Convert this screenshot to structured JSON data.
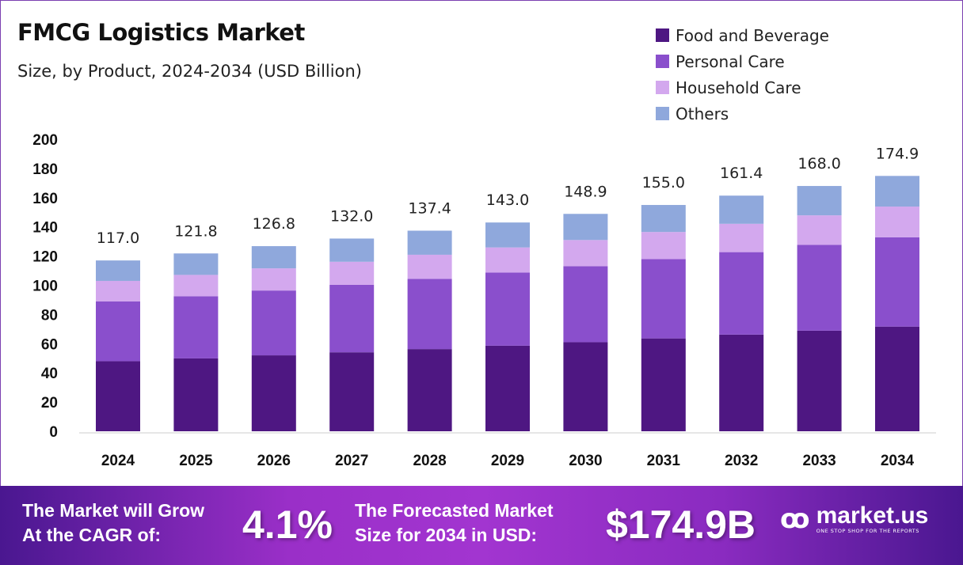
{
  "chart_data": {
    "type": "bar",
    "stacked": true,
    "title": "FMCG Logistics Market",
    "subtitle": "Size, by Product, 2024-2034 (USD Billion)",
    "categories": [
      "2024",
      "2025",
      "2026",
      "2027",
      "2028",
      "2029",
      "2030",
      "2031",
      "2032",
      "2033",
      "2034"
    ],
    "series": [
      {
        "name": "Food and Beverage",
        "color": "#4e1782",
        "values": [
          48.0,
          49.9,
          52.0,
          54.1,
          56.3,
          58.6,
          61.0,
          63.6,
          66.2,
          68.9,
          71.7
        ]
      },
      {
        "name": "Personal Care",
        "color": "#8a4fcc",
        "values": [
          41.0,
          42.6,
          44.4,
          46.2,
          48.1,
          50.1,
          52.1,
          54.3,
          56.5,
          58.8,
          61.2
        ]
      },
      {
        "name": "Household Care",
        "color": "#d3a8ee",
        "values": [
          14.0,
          14.6,
          15.2,
          15.8,
          16.5,
          17.2,
          17.9,
          18.6,
          19.4,
          20.2,
          21.0
        ]
      },
      {
        "name": "Others",
        "color": "#8fa8dc",
        "values": [
          14.0,
          14.7,
          15.2,
          15.9,
          16.5,
          17.1,
          17.9,
          18.5,
          19.3,
          20.1,
          21.0
        ]
      }
    ],
    "totals": [
      "117.0",
      "121.8",
      "126.8",
      "132.0",
      "137.4",
      "143.0",
      "148.9",
      "155.0",
      "161.4",
      "168.0",
      "174.9"
    ],
    "yticks": [
      "0",
      "20",
      "40",
      "60",
      "80",
      "100",
      "120",
      "140",
      "160",
      "180",
      "200"
    ],
    "ylim": [
      0,
      200
    ],
    "grid": false,
    "legend_position": "top-right"
  },
  "banner": {
    "cagr_label_line1": "The Market will Grow",
    "cagr_label_line2": "At the CAGR of:",
    "cagr_value": "4.1%",
    "forecast_label_line1": "The Forecasted Market",
    "forecast_label_line2": "Size for 2034 in USD:",
    "forecast_value": "$174.9B",
    "logo_name": "market.us",
    "logo_tagline": "ONE STOP SHOP FOR THE REPORTS"
  }
}
